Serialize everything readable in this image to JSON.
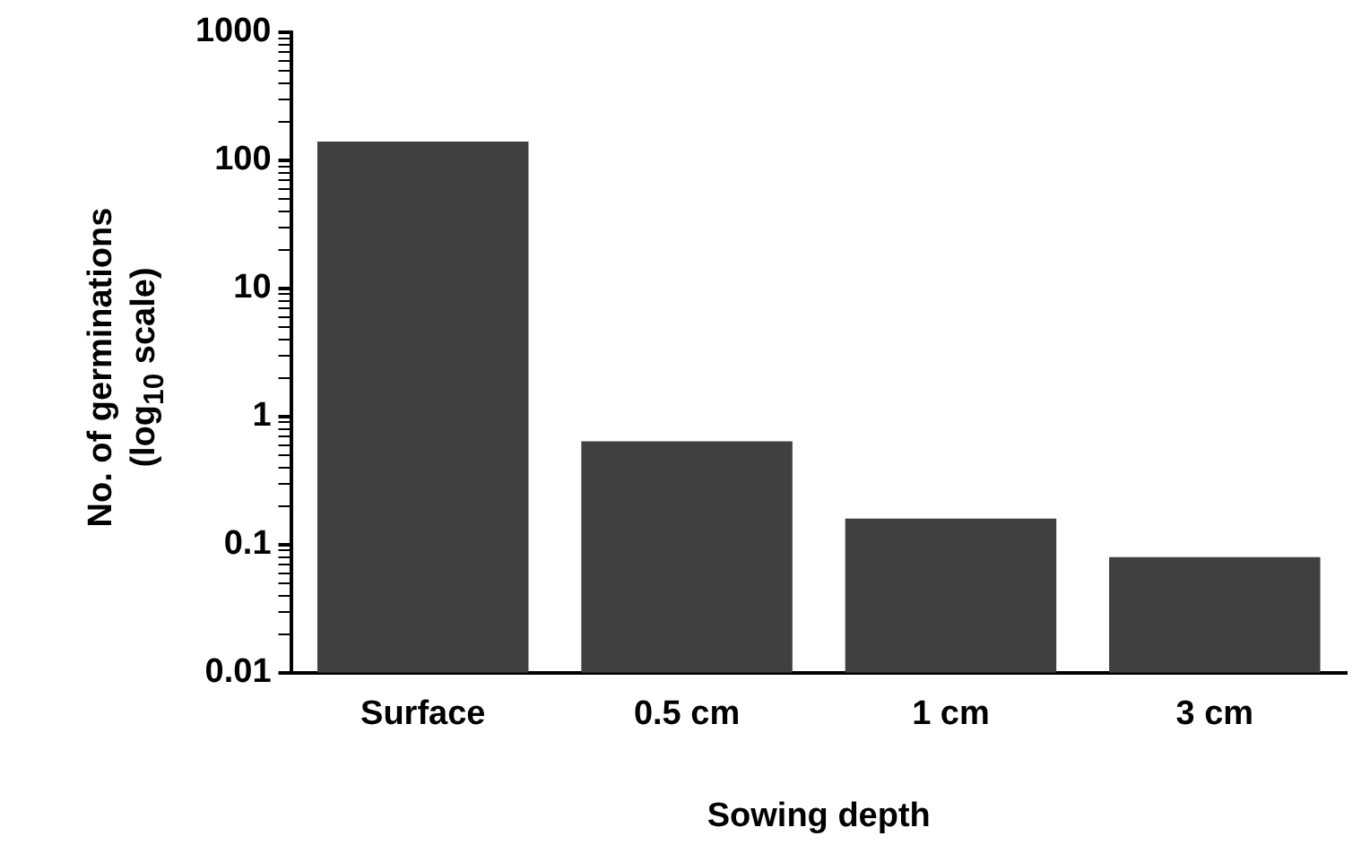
{
  "chart_data": {
    "type": "bar",
    "xlabel": "Sowing depth",
    "ylabel": "No. of germinations\n(log$_{10}$ scale)",
    "categories": [
      "Surface",
      "0.5 cm",
      "1 cm",
      "3 cm"
    ],
    "values": [
      140,
      0.64,
      0.16,
      0.08
    ],
    "color": "#404040",
    "log": true,
    "ylim": [
      0.01,
      1000
    ],
    "yticks": [
      0.01,
      {
        "value": 0.02,
        "label": null
      },
      {
        "value": 0.03,
        "label": null
      },
      {
        "value": 0.04,
        "label": null
      },
      {
        "value": 0.05,
        "label": null
      },
      {
        "value": 0.06,
        "label": null
      },
      {
        "value": 0.07,
        "label": null
      },
      {
        "value": 0.08,
        "label": null
      },
      {
        "value": 0.09,
        "label": null
      },
      0.1,
      {
        "value": 0.2,
        "label": null
      },
      {
        "value": 0.3,
        "label": null
      },
      {
        "value": 0.4,
        "label": null
      },
      {
        "value": 0.5,
        "label": null
      },
      {
        "value": 0.6,
        "label": null
      },
      {
        "value": 0.7,
        "label": null
      },
      {
        "value": 0.8,
        "label": null
      },
      {
        "value": 0.9,
        "label": null
      },
      1,
      {
        "value": 2,
        "label": null
      },
      {
        "value": 3,
        "label": null
      },
      {
        "value": 4,
        "label": null
      },
      {
        "value": 5,
        "label": null
      },
      {
        "value": 6,
        "label": null
      },
      {
        "value": 7,
        "label": null
      },
      {
        "value": 8,
        "label": null
      },
      {
        "value": 9,
        "label": null
      },
      10,
      {
        "value": 20,
        "label": null
      },
      {
        "value": 30,
        "label": null
      },
      {
        "value": 40,
        "label": null
      },
      {
        "value": 50,
        "label": null
      },
      {
        "value": 60,
        "label": null
      },
      {
        "value": 70,
        "label": null
      },
      {
        "value": 80,
        "label": null
      },
      {
        "value": 90,
        "label": null
      },
      100,
      {
        "value": 200,
        "label": null
      },
      {
        "value": 300,
        "label": null
      },
      {
        "value": 400,
        "label": null
      },
      {
        "value": 500,
        "label": null
      },
      {
        "value": 600,
        "label": null
      },
      {
        "value": 700,
        "label": null
      },
      {
        "value": 800,
        "label": null
      },
      {
        "value": 900,
        "label": null
      },
      1000
    ],
    "grid": false,
    "legend": false
  }
}
